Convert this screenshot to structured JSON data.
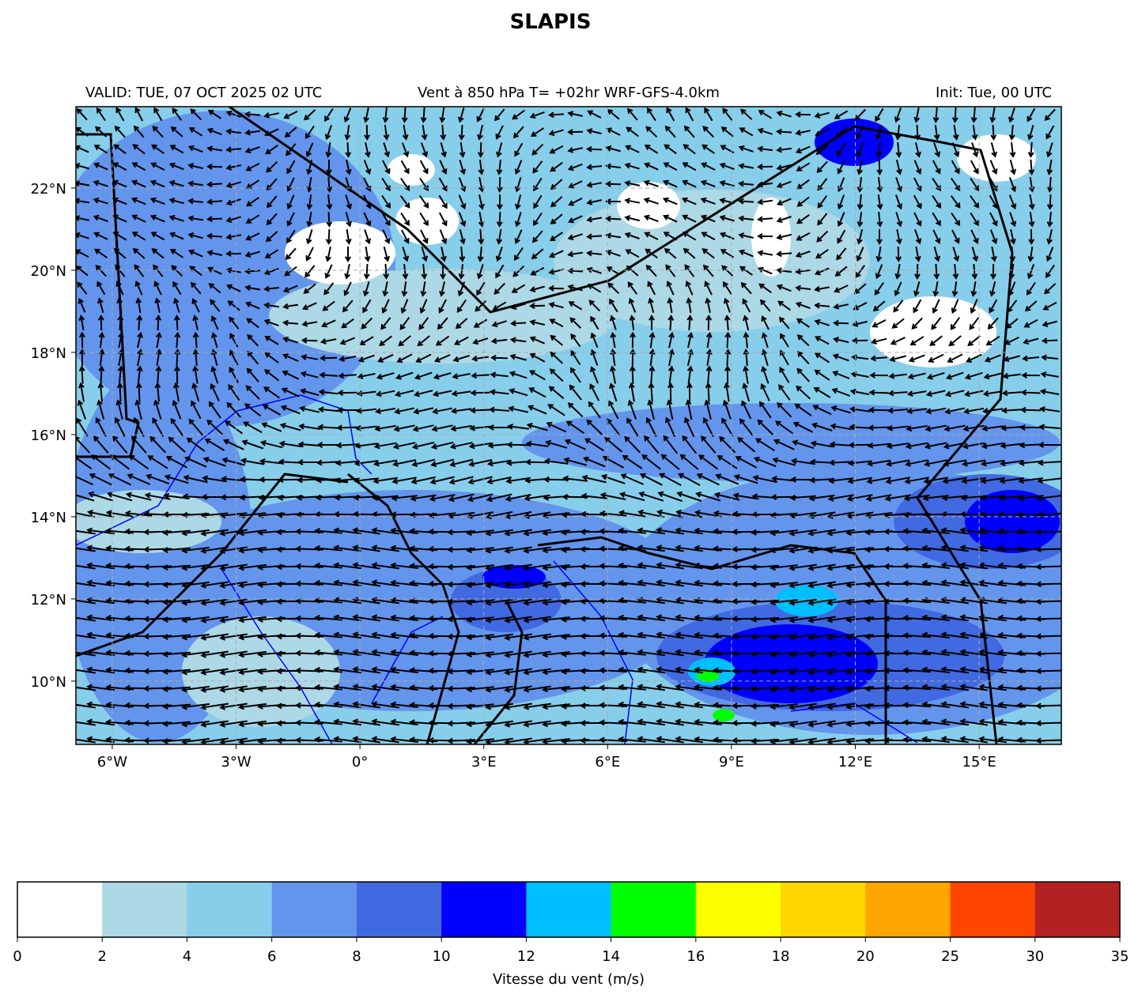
{
  "map": {
    "title": "SLAPIS",
    "left_title": "VALID: TUE, 07 OCT 2025 02 UTC",
    "center_title": "Vent à 850 hPa T= +02hr  WRF-GFS-4.0km",
    "right_title": "Init: Tue, 00 UTC",
    "xlim": [
      -6.88,
      16.99
    ],
    "ylim": [
      8.46,
      23.98
    ],
    "xticks": [
      {
        "value": -6,
        "label": "6°W"
      },
      {
        "value": -3,
        "label": "3°W"
      },
      {
        "value": 0,
        "label": "0°"
      },
      {
        "value": 3,
        "label": "3°E"
      },
      {
        "value": 6,
        "label": "6°E"
      },
      {
        "value": 9,
        "label": "9°E"
      },
      {
        "value": 12,
        "label": "12°E"
      },
      {
        "value": 15,
        "label": "15°E"
      }
    ],
    "yticks": [
      {
        "value": 10,
        "label": "10°N"
      },
      {
        "value": 12,
        "label": "12°N"
      },
      {
        "value": 14,
        "label": "14°N"
      },
      {
        "value": 16,
        "label": "16°N"
      },
      {
        "value": 18,
        "label": "18°N"
      },
      {
        "value": 20,
        "label": "20°N"
      },
      {
        "value": 22,
        "label": "22°N"
      }
    ],
    "grid": true,
    "colorbar": {
      "label": "Vitesse du vent (m/s)",
      "ticks": [
        0,
        2,
        4,
        6,
        8,
        10,
        12,
        14,
        16,
        18,
        20,
        25,
        30,
        35
      ],
      "colors": [
        "#ffffff",
        "#add8e6",
        "#87ceeb",
        "#6495ed",
        "#4169e1",
        "#0000ff",
        "#00bfff",
        "#00ff00",
        "#ffff00",
        "#ffd700",
        "#ffa500",
        "#ff4500",
        "#b22222"
      ]
    }
  }
}
